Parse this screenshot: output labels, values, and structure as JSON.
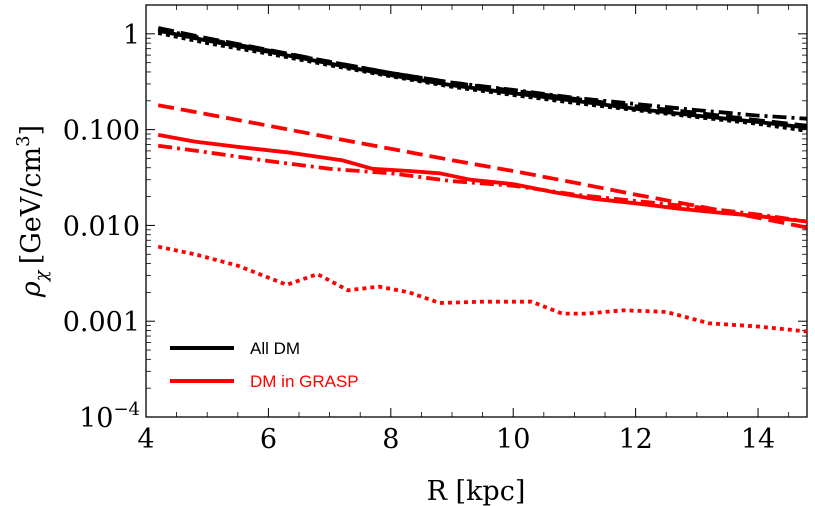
{
  "chart_data": {
    "type": "line",
    "xlabel": "R [kpc]",
    "ylabel_main": "ρ",
    "ylabel_sub": "χ",
    "ylabel_unit": "[GeV/cm",
    "ylabel_sup": "3",
    "ylabel_close": "]",
    "xlim": [
      4.0,
      14.8
    ],
    "ylim": [
      0.0001,
      2.0
    ],
    "yscale": "log",
    "grid": false,
    "legend_placement": "bottom-left",
    "x_ticks": [
      4,
      6,
      8,
      10,
      12,
      14
    ],
    "x_tick_labels": [
      "4",
      "6",
      "8",
      "10",
      "12",
      "14"
    ],
    "y_ticks": [
      {
        "value": 1,
        "label": "1"
      },
      {
        "value": 0.1,
        "label": "0.100"
      },
      {
        "value": 0.01,
        "label": "0.010"
      },
      {
        "value": 0.001,
        "label": "0.001"
      },
      {
        "value": 0.0001,
        "label_base": "10",
        "label_exp": "−4"
      }
    ],
    "legend": [
      {
        "label": "All DM",
        "color": "#000000"
      },
      {
        "label": "DM in GRASP",
        "color": "#ff0000"
      }
    ],
    "series": [
      {
        "color": "#000000",
        "style": "solid",
        "x": [
          4.2,
          5,
          6,
          7,
          8,
          9,
          10,
          11,
          12,
          13,
          14,
          14.8
        ],
        "y": [
          1.08,
          0.85,
          0.65,
          0.49,
          0.37,
          0.29,
          0.24,
          0.2,
          0.165,
          0.14,
          0.12,
          0.105
        ]
      },
      {
        "color": "#000000",
        "style": "dashed",
        "x": [
          4.2,
          5,
          6,
          7,
          8,
          9,
          10,
          11,
          12,
          13,
          14,
          14.8
        ],
        "y": [
          1.15,
          0.9,
          0.68,
          0.51,
          0.39,
          0.31,
          0.255,
          0.21,
          0.175,
          0.15,
          0.125,
          0.11
        ]
      },
      {
        "color": "#000000",
        "style": "dotted",
        "x": [
          4.2,
          5,
          6,
          7,
          8,
          9,
          10,
          11,
          12,
          13,
          14,
          14.8
        ],
        "y": [
          1.02,
          0.8,
          0.62,
          0.47,
          0.36,
          0.28,
          0.23,
          0.19,
          0.16,
          0.135,
          0.115,
          0.097
        ]
      },
      {
        "color": "#000000",
        "style": "dashdot",
        "x": [
          4.2,
          5,
          6,
          7,
          8,
          9,
          10,
          11,
          12,
          13,
          14,
          14.8
        ],
        "y": [
          1.12,
          0.88,
          0.67,
          0.51,
          0.39,
          0.31,
          0.26,
          0.215,
          0.185,
          0.16,
          0.14,
          0.13
        ]
      },
      {
        "color": "#ff0000",
        "style": "solid",
        "x": [
          4.2,
          4.8,
          5.5,
          6.3,
          7.2,
          7.7,
          8.3,
          8.8,
          9.3,
          10,
          10.7,
          11.3,
          12,
          12.7,
          13.4,
          14,
          14.8
        ],
        "y": [
          0.088,
          0.075,
          0.066,
          0.058,
          0.048,
          0.039,
          0.037,
          0.035,
          0.03,
          0.027,
          0.022,
          0.019,
          0.017,
          0.015,
          0.0135,
          0.0125,
          0.011
        ]
      },
      {
        "color": "#ff0000",
        "style": "dashed",
        "x": [
          4.2,
          5,
          6,
          7,
          8,
          9,
          10,
          11,
          12,
          13,
          14,
          14.8
        ],
        "y": [
          0.18,
          0.145,
          0.11,
          0.083,
          0.063,
          0.048,
          0.037,
          0.028,
          0.021,
          0.016,
          0.012,
          0.0095
        ]
      },
      {
        "color": "#ff0000",
        "style": "dashdot",
        "x": [
          4.2,
          5,
          6,
          7,
          8,
          9,
          10,
          11,
          12,
          13,
          14,
          14.8
        ],
        "y": [
          0.068,
          0.058,
          0.047,
          0.039,
          0.035,
          0.029,
          0.026,
          0.021,
          0.018,
          0.0155,
          0.013,
          0.011
        ]
      },
      {
        "color": "#ff0000",
        "style": "dotted",
        "x": [
          4.2,
          4.8,
          5.5,
          6.3,
          6.8,
          7.3,
          7.8,
          8.3,
          8.8,
          9.5,
          10.3,
          10.8,
          11.2,
          11.8,
          12.5,
          13.2,
          14,
          14.8
        ],
        "y": [
          0.006,
          0.005,
          0.0038,
          0.0024,
          0.0031,
          0.0021,
          0.0023,
          0.002,
          0.00155,
          0.0016,
          0.0016,
          0.0012,
          0.0012,
          0.0013,
          0.00125,
          0.00095,
          0.00088,
          0.00078
        ]
      }
    ]
  }
}
